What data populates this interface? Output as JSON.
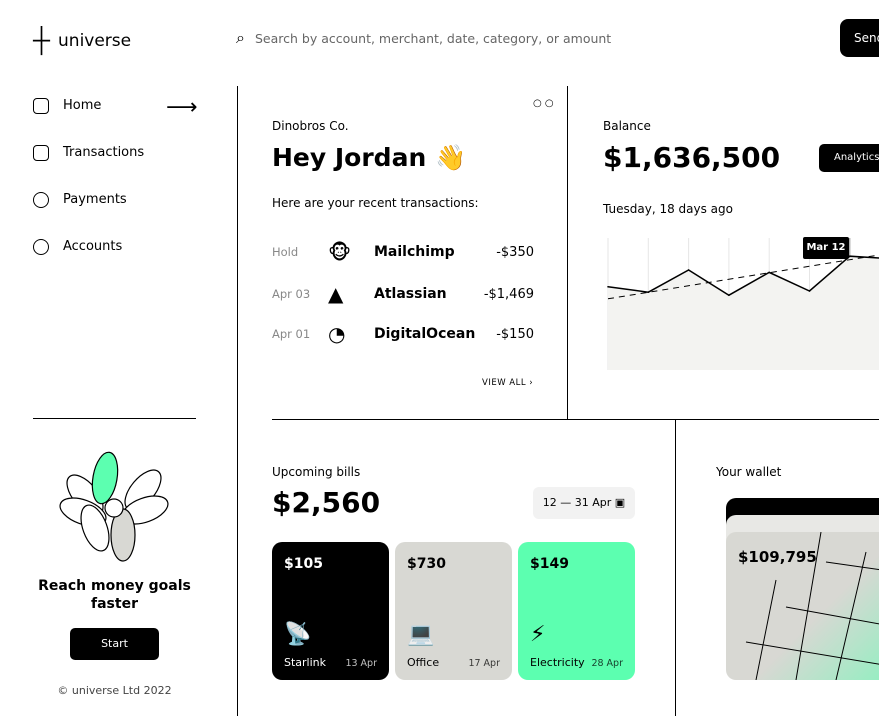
{
  "header": {
    "logo": "universe",
    "search_placeholder": "Search by account, merchant, date, category, or amount",
    "send_label": "Send"
  },
  "sidebar": {
    "items": [
      {
        "label": "Home",
        "icon": "home-icon"
      },
      {
        "label": "Transactions",
        "icon": "transactions-icon"
      },
      {
        "label": "Payments",
        "icon": "payments-icon"
      },
      {
        "label": "Accounts",
        "icon": "accounts-icon"
      }
    ],
    "promo": "Reach money goals faster",
    "start_label": "Start",
    "copyright": "© universe Ltd 2022"
  },
  "greeting": {
    "company": "Dinobros Co.",
    "title": "Hey Jordan 👋",
    "subtitle": "Here are your recent transactions:",
    "view_all": "VIEW ALL",
    "transactions": [
      {
        "date": "Hold",
        "merchant": "Mailchimp",
        "amount": "-$350"
      },
      {
        "date": "Apr 03",
        "merchant": "Atlassian",
        "amount": "-$1,469"
      },
      {
        "date": "Apr 01",
        "merchant": "DigitalOcean",
        "amount": "-$150"
      }
    ]
  },
  "balance": {
    "label": "Balance",
    "amount": "$1,636,500",
    "analytics_label": "Analytics",
    "date": "Tuesday, 18 days ago",
    "marker": "Mar 12",
    "chart_data": {
      "type": "line",
      "series": [
        {
          "values": [
            72,
            63,
            100,
            58,
            96,
            65,
            123,
            119
          ]
        }
      ],
      "trend": [
        52,
        128
      ],
      "highlight_index": 6
    }
  },
  "bills": {
    "label": "Upcoming bills",
    "amount": "$2,560",
    "range": "12 — 31 Apr",
    "items": [
      {
        "amount": "$105",
        "name": "Starlink",
        "date": "13 Apr",
        "color": "#000000"
      },
      {
        "amount": "$730",
        "name": "Office",
        "date": "17 Apr",
        "color": "#d8d8d3"
      },
      {
        "amount": "$149",
        "name": "Electricity",
        "date": "28 Apr",
        "color": "#5cffb0"
      }
    ]
  },
  "wallet": {
    "label": "Your wallet",
    "amount": "$109,795"
  }
}
